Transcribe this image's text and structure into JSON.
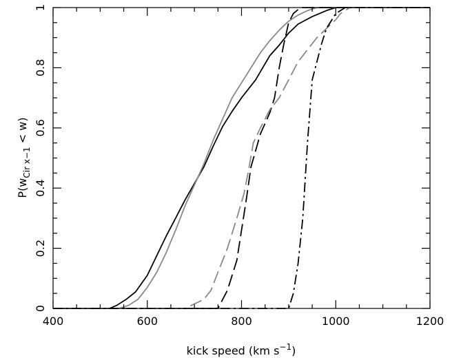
{
  "chart_data": {
    "type": "line",
    "title": "",
    "xlabel": "kick speed  (km s^-1)",
    "xlabel_parts": {
      "main": "kick speed  (km s",
      "sup": "−1",
      "close": ")"
    },
    "ylabel": "P(w_Cir x−1 < w)",
    "ylabel_parts": {
      "prefix": "P(w",
      "sub": "Cir x−1",
      "suffix": " < w)"
    },
    "xlim": [
      400,
      1200
    ],
    "ylim": [
      0,
      1
    ],
    "xticks": [
      400,
      600,
      800,
      1000,
      1200
    ],
    "xtick_labels": [
      "400",
      "600",
      "800",
      "1000",
      "1200"
    ],
    "yticks": [
      0,
      0.2,
      0.4,
      0.6,
      0.8,
      1
    ],
    "ytick_labels": [
      "0",
      "0.2",
      "0.4",
      "0.6",
      "0.8",
      "1"
    ],
    "grid": false,
    "series": [
      {
        "color": "#000000",
        "dash": "solid",
        "points": [
          [
            400,
            0
          ],
          [
            520,
            0
          ],
          [
            535,
            0.01
          ],
          [
            555,
            0.03
          ],
          [
            575,
            0.055
          ],
          [
            600,
            0.11
          ],
          [
            620,
            0.175
          ],
          [
            640,
            0.24
          ],
          [
            660,
            0.3
          ],
          [
            680,
            0.36
          ],
          [
            700,
            0.415
          ],
          [
            720,
            0.47
          ],
          [
            740,
            0.54
          ],
          [
            760,
            0.605
          ],
          [
            780,
            0.655
          ],
          [
            800,
            0.7
          ],
          [
            830,
            0.76
          ],
          [
            860,
            0.84
          ],
          [
            880,
            0.875
          ],
          [
            900,
            0.915
          ],
          [
            920,
            0.945
          ],
          [
            950,
            0.97
          ],
          [
            980,
            0.99
          ],
          [
            1000,
            1
          ],
          [
            1200,
            1
          ]
        ]
      },
      {
        "color": "#888888",
        "dash": "solid",
        "points": [
          [
            400,
            0
          ],
          [
            540,
            0
          ],
          [
            560,
            0.01
          ],
          [
            580,
            0.03
          ],
          [
            600,
            0.07
          ],
          [
            620,
            0.12
          ],
          [
            640,
            0.185
          ],
          [
            660,
            0.26
          ],
          [
            680,
            0.34
          ],
          [
            700,
            0.41
          ],
          [
            720,
            0.48
          ],
          [
            740,
            0.56
          ],
          [
            760,
            0.63
          ],
          [
            780,
            0.7
          ],
          [
            800,
            0.75
          ],
          [
            820,
            0.8
          ],
          [
            840,
            0.85
          ],
          [
            860,
            0.89
          ],
          [
            880,
            0.925
          ],
          [
            900,
            0.955
          ],
          [
            920,
            0.975
          ],
          [
            940,
            0.99
          ],
          [
            960,
            1
          ],
          [
            1200,
            1
          ]
        ]
      },
      {
        "color": "#000000",
        "dash": "dashed",
        "points": [
          [
            400,
            0
          ],
          [
            750,
            0
          ],
          [
            770,
            0.06
          ],
          [
            790,
            0.16
          ],
          [
            800,
            0.26
          ],
          [
            810,
            0.36
          ],
          [
            820,
            0.47
          ],
          [
            840,
            0.58
          ],
          [
            860,
            0.65
          ],
          [
            870,
            0.7
          ],
          [
            880,
            0.8
          ],
          [
            890,
            0.88
          ],
          [
            900,
            0.95
          ],
          [
            910,
            0.98
          ],
          [
            925,
            1
          ],
          [
            1200,
            1
          ]
        ]
      },
      {
        "color": "#888888",
        "dash": "dashed",
        "points": [
          [
            400,
            0
          ],
          [
            680,
            0
          ],
          [
            700,
            0.015
          ],
          [
            720,
            0.03
          ],
          [
            735,
            0.06
          ],
          [
            750,
            0.12
          ],
          [
            770,
            0.2
          ],
          [
            790,
            0.3
          ],
          [
            805,
            0.38
          ],
          [
            815,
            0.46
          ],
          [
            825,
            0.55
          ],
          [
            840,
            0.6
          ],
          [
            860,
            0.66
          ],
          [
            880,
            0.7
          ],
          [
            900,
            0.76
          ],
          [
            920,
            0.82
          ],
          [
            940,
            0.86
          ],
          [
            960,
            0.9
          ],
          [
            980,
            0.93
          ],
          [
            1000,
            0.96
          ],
          [
            1010,
            0.98
          ],
          [
            1030,
            1
          ],
          [
            1200,
            1
          ]
        ]
      },
      {
        "color": "#000000",
        "dash": "dashdot",
        "points": [
          [
            400,
            0
          ],
          [
            900,
            0
          ],
          [
            910,
            0.05
          ],
          [
            920,
            0.15
          ],
          [
            930,
            0.3
          ],
          [
            940,
            0.55
          ],
          [
            950,
            0.76
          ],
          [
            960,
            0.82
          ],
          [
            970,
            0.88
          ],
          [
            980,
            0.93
          ],
          [
            1000,
            0.98
          ],
          [
            1020,
            1
          ],
          [
            1200,
            1
          ]
        ]
      }
    ]
  }
}
